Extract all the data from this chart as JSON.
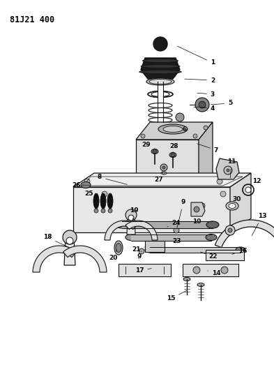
{
  "title": "81J21 400",
  "bg": "#ffffff",
  "fw": 3.93,
  "fh": 5.33,
  "dpi": 100,
  "lc": "#111111",
  "lw": 0.7
}
